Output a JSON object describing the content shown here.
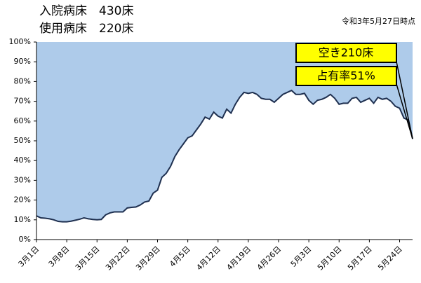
{
  "chart_data": {
    "type": "area",
    "annotations": [
      "入院病床　430床",
      "使用病床　220床",
      "令和3年5月27日時点",
      "空き210床",
      "占有率51%"
    ],
    "categories": [
      "3月1日",
      null,
      null,
      null,
      null,
      null,
      null,
      "3月8日",
      null,
      null,
      null,
      null,
      null,
      null,
      "3月15日",
      null,
      null,
      null,
      null,
      null,
      null,
      "3月22日",
      null,
      null,
      null,
      null,
      null,
      null,
      "3月29日",
      null,
      null,
      null,
      null,
      null,
      null,
      "4月5日",
      null,
      null,
      null,
      null,
      null,
      null,
      "4月12日",
      null,
      null,
      null,
      null,
      null,
      null,
      "4月19日",
      null,
      null,
      null,
      null,
      null,
      null,
      "4月26日",
      null,
      null,
      null,
      null,
      null,
      null,
      "5月3日",
      null,
      null,
      null,
      null,
      null,
      null,
      "5月10日",
      null,
      null,
      null,
      null,
      null,
      null,
      "5月17日",
      null,
      null,
      null,
      null,
      null,
      null,
      "5月24日",
      null,
      null,
      null
    ],
    "values": [
      12,
      11,
      10.8,
      10.5,
      10,
      9.2,
      9,
      9,
      9.3,
      9.8,
      10.3,
      11,
      10.5,
      10.2,
      10,
      10.2,
      12.5,
      13.5,
      14,
      14,
      14,
      16,
      16.3,
      16.5,
      17.5,
      19,
      19.5,
      23.5,
      25,
      31.5,
      33.5,
      37,
      42,
      45.5,
      48.5,
      51.5,
      52.5,
      55.5,
      58.5,
      62,
      61,
      64.5,
      62.5,
      61.5,
      66,
      64,
      68.5,
      72,
      74.5,
      74,
      74.5,
      73.5,
      71.5,
      71,
      71,
      69.5,
      71.5,
      73.5,
      74.5,
      75.5,
      73.5,
      73.5,
      74,
      70.5,
      68.5,
      70.5,
      71,
      72,
      73.5,
      71.5,
      68.5,
      69,
      69,
      71.5,
      72,
      69.5,
      70.5,
      71.5,
      69,
      72,
      71,
      71.5,
      70,
      67.5,
      66.5,
      61.5,
      60.5,
      51
    ],
    "color": "#1f3050",
    "fill": "#ffffff",
    "background": "#aecbea",
    "ylim": [
      0,
      100
    ],
    "yticks": [
      {
        "value": 0,
        "label": "0%"
      },
      {
        "value": 10,
        "label": "10%"
      },
      {
        "value": 20,
        "label": "20%"
      },
      {
        "value": 30,
        "label": "30%"
      },
      {
        "value": 40,
        "label": "40%"
      },
      {
        "value": 50,
        "label": "50%"
      },
      {
        "value": 60,
        "label": "60%"
      },
      {
        "value": 70,
        "label": "70%"
      },
      {
        "value": 80,
        "label": "80%"
      },
      {
        "value": 90,
        "label": "90%"
      },
      {
        "value": 100,
        "label": "100%"
      }
    ],
    "grid": false
  }
}
